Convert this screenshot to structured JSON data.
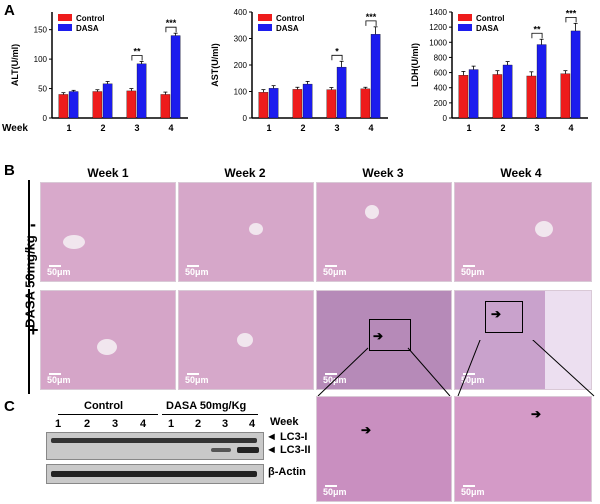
{
  "panel_letters": {
    "a": "A",
    "b": "B",
    "c": "C"
  },
  "chart_data": [
    {
      "type": "bar",
      "ylabel": "ALT(U/ml)",
      "categories": [
        "1",
        "2",
        "3",
        "4"
      ],
      "series": [
        {
          "name": "Control",
          "color": "#ee1c1c",
          "values": [
            40,
            45,
            46,
            40
          ],
          "err": [
            3,
            3,
            4,
            4
          ]
        },
        {
          "name": "DASA",
          "color": "#1c1cee",
          "values": [
            45,
            58,
            92,
            140
          ],
          "err": [
            2,
            4,
            4,
            4
          ]
        }
      ],
      "ylim": [
        0,
        180
      ],
      "yticks": [
        0,
        50,
        100,
        150
      ],
      "sig": [
        {
          "category": "3",
          "label": "**"
        },
        {
          "category": "4",
          "label": "***"
        }
      ]
    },
    {
      "type": "bar",
      "ylabel": "AST(U/ml)",
      "categories": [
        "1",
        "2",
        "3",
        "4"
      ],
      "series": [
        {
          "name": "Control",
          "color": "#ee1c1c",
          "values": [
            97,
            108,
            107,
            110
          ],
          "err": [
            10,
            8,
            8,
            6
          ]
        },
        {
          "name": "DASA",
          "color": "#1c1cee",
          "values": [
            112,
            128,
            192,
            316
          ],
          "err": [
            10,
            10,
            22,
            28
          ]
        }
      ],
      "ylim": [
        0,
        400
      ],
      "yticks": [
        0,
        100,
        200,
        300,
        400
      ],
      "sig": [
        {
          "category": "3",
          "label": "*"
        },
        {
          "category": "4",
          "label": "***"
        }
      ]
    },
    {
      "type": "bar",
      "ylabel": "LDH(U/ml)",
      "categories": [
        "1",
        "2",
        "3",
        "4"
      ],
      "series": [
        {
          "name": "Control",
          "color": "#ee1c1c",
          "values": [
            565,
            575,
            555,
            585
          ],
          "err": [
            50,
            50,
            55,
            40
          ]
        },
        {
          "name": "DASA",
          "color": "#1c1cee",
          "values": [
            640,
            700,
            970,
            1150
          ],
          "err": [
            45,
            45,
            70,
            100
          ]
        }
      ],
      "ylim": [
        0,
        1400
      ],
      "yticks": [
        0,
        200,
        400,
        600,
        800,
        1000,
        1200,
        1400
      ],
      "sig": [
        {
          "category": "3",
          "label": "**"
        },
        {
          "category": "4",
          "label": "***"
        }
      ]
    }
  ],
  "week_axis_label": "Week",
  "panel_b": {
    "week_titles": [
      "Week 1",
      "Week 2",
      "Week 3",
      "Week 4"
    ],
    "row_group_label": "DASA 50mg/kg",
    "minus_sign": "-",
    "plus_sign": "+",
    "scale_label": "50μm"
  },
  "panel_c": {
    "control_label": "Control",
    "dasa_label": "DASA  50mg/Kg",
    "week_label": "Week",
    "lanes": [
      "1",
      "2",
      "3",
      "4",
      "1",
      "2",
      "3",
      "4"
    ],
    "lc3i_label": "LC3-I",
    "lc3ii_label": "LC3-II",
    "actin_label": "β-Actin"
  }
}
